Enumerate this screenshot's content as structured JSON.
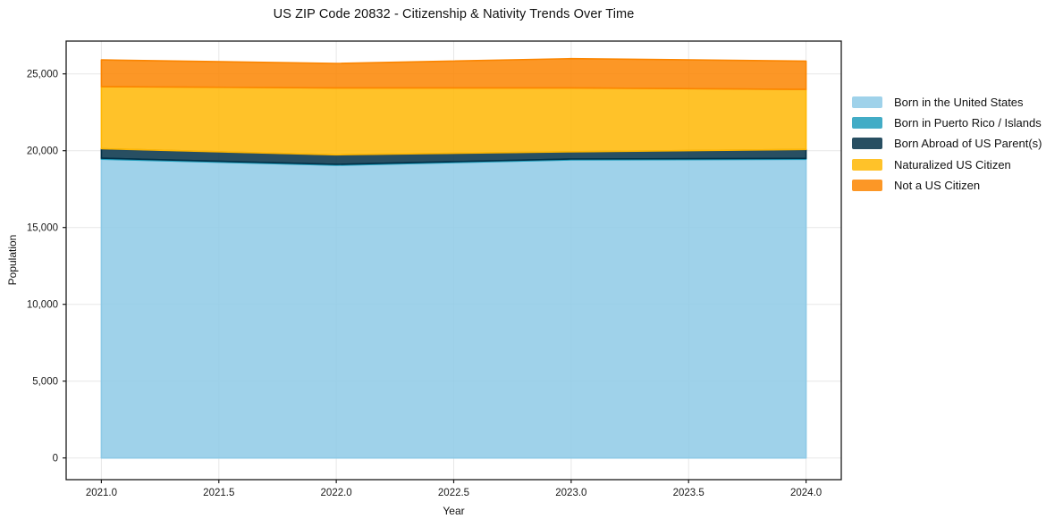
{
  "figure": {
    "title": "US ZIP Code 20832 - Citizenship & Nativity Trends Over Time"
  },
  "chart_data": {
    "type": "area",
    "stacked": true,
    "title": "US ZIP Code 20832 - Citizenship & Nativity Trends Over Time",
    "xlabel": "Year",
    "ylabel": "Population",
    "x": [
      2021,
      2022,
      2023,
      2024
    ],
    "series": [
      {
        "name": "Born in the United States",
        "values": [
          19450,
          19050,
          19400,
          19440
        ],
        "color": "#8ecae6"
      },
      {
        "name": "Born in Puerto Rico / Islands",
        "values": [
          60,
          60,
          60,
          60
        ],
        "color": "#219ebc"
      },
      {
        "name": "Born Abroad of US Parent(s)",
        "values": [
          620,
          620,
          470,
          580
        ],
        "color": "#023047"
      },
      {
        "name": "Naturalized US Citizen",
        "values": [
          4040,
          4360,
          4160,
          3910
        ],
        "color": "#ffb703"
      },
      {
        "name": "Not a US Citizen",
        "values": [
          1740,
          1590,
          1900,
          1840
        ],
        "color": "#fb8500"
      }
    ],
    "fill_alpha": 0.85,
    "xlim": [
      2020.85,
      2024.15
    ],
    "ylim": [
      -1413,
      27134
    ],
    "xticks": {
      "values": [
        2021.0,
        2021.5,
        2022.0,
        2022.5,
        2023.0,
        2023.5,
        2024.0
      ],
      "labels": [
        "2021.0",
        "2021.5",
        "2022.0",
        "2022.5",
        "2023.0",
        "2023.5",
        "2024.0"
      ]
    },
    "yticks": {
      "values": [
        0,
        5000,
        10000,
        15000,
        20000,
        25000
      ],
      "labels": [
        "0",
        "5,000",
        "10,000",
        "15,000",
        "20,000",
        "25,000"
      ]
    },
    "grid": true,
    "grid_color": "#e7e7e7",
    "spine_color": "#1a1a1a",
    "tick_label_color": "#1a1a1a",
    "legend_position": "right"
  }
}
